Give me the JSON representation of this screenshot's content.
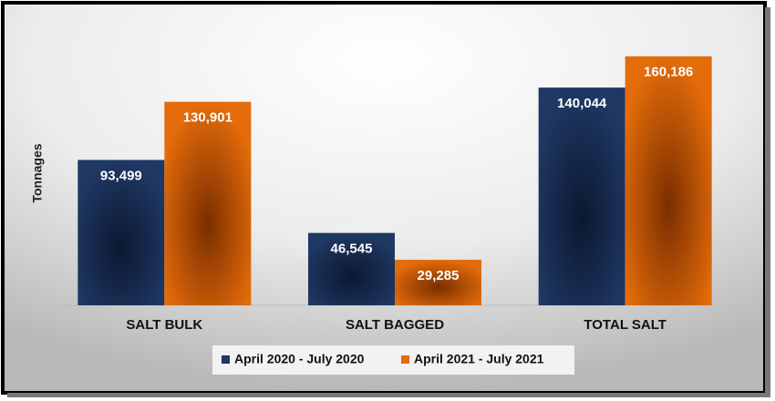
{
  "chart_data": {
    "type": "bar",
    "y_label": "Tonnages",
    "categories": [
      "SALT BULK",
      "SALT BAGGED",
      "TOTAL SALT"
    ],
    "series": [
      {
        "name": "April 2020 - July 2020",
        "color": "#1f3864",
        "values": [
          93499,
          46545,
          140044
        ],
        "value_labels": [
          "93,499",
          "46,545",
          "140,044"
        ]
      },
      {
        "name": "April 2021 - July 2021",
        "color": "#e46c0a",
        "values": [
          130901,
          29285,
          160186
        ],
        "value_labels": [
          "130,901",
          "29,285",
          "160,186"
        ]
      }
    ],
    "ylim": [
      0,
      170000
    ],
    "grid": false,
    "legend": "bottom"
  }
}
